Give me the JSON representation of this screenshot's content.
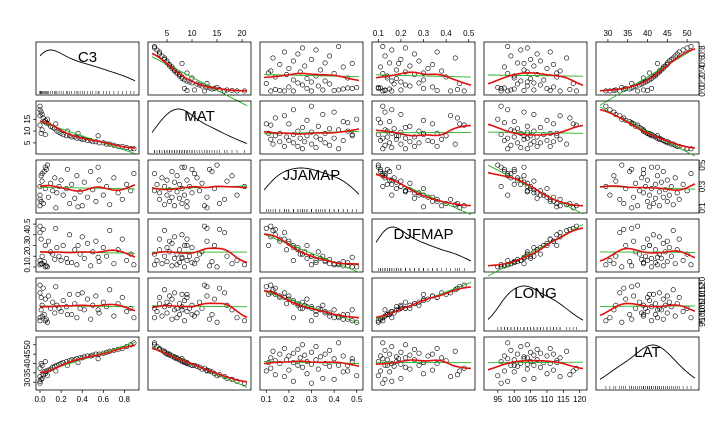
{
  "chart_data": {
    "type": "scatterplot-matrix",
    "variables": [
      {
        "name": "C3",
        "range": [
          0.0,
          0.9
        ],
        "ticks": [
          0.0,
          0.2,
          0.4,
          0.6,
          0.8
        ],
        "topTicks": [
          0.0,
          0.2,
          0.4,
          0.6,
          0.8
        ]
      },
      {
        "name": "MAT",
        "range": [
          2,
          21
        ],
        "ticks": [
          5,
          10,
          15
        ],
        "topTicks": [
          5,
          10,
          15,
          20
        ]
      },
      {
        "name": "JJAMAP",
        "range": [
          0.09,
          0.51
        ],
        "ticks": [
          0.1,
          0.2,
          0.3,
          0.4,
          0.5
        ],
        "topTicks": [
          0.1,
          0.2,
          0.3,
          0.4,
          0.5
        ]
      },
      {
        "name": "DJFMAP",
        "range": [
          0.09,
          0.51
        ],
        "ticks": [
          0.1,
          0.2,
          0.3,
          0.4,
          0.5
        ],
        "topTicks": [
          0.1,
          0.2,
          0.3,
          0.4,
          0.5
        ]
      },
      {
        "name": "LONG",
        "range": [
          92,
          121
        ],
        "ticks": [
          95,
          100,
          105,
          110,
          115,
          120
        ],
        "rightTicks": [
          95,
          100,
          105,
          110,
          115,
          120
        ],
        "bottomTicks": [
          95,
          100,
          105,
          110,
          115,
          120
        ]
      },
      {
        "name": "LAT",
        "range": [
          28,
          52
        ],
        "ticks": [
          30,
          35,
          40,
          45,
          50
        ],
        "topTicks": [
          30,
          35,
          40,
          45,
          50
        ]
      }
    ],
    "rightTicksByRow": [
      [
        0.0,
        0.2,
        0.4,
        0.6,
        0.8
      ],
      [
        5,
        10,
        15
      ],
      [
        0.1,
        0.3,
        0.5
      ],
      [
        0.1,
        0.3,
        0.5
      ],
      [
        95,
        100,
        105,
        110,
        115,
        120
      ],
      [
        30,
        35,
        40,
        45,
        50
      ]
    ],
    "leftTicksByRow": [
      [],
      [
        5,
        10,
        15
      ],
      [],
      [
        0.1,
        0.2,
        0.3,
        0.4,
        0.5
      ],
      [],
      [
        30,
        35,
        40,
        45,
        50
      ]
    ],
    "topTicksByCol": [
      [],
      [
        5,
        10,
        15,
        20
      ],
      [],
      [
        0.1,
        0.2,
        0.3,
        0.4,
        0.5
      ],
      [],
      [
        30,
        35,
        40,
        45,
        50
      ]
    ],
    "bottomTicksByCol": [
      [
        0.0,
        0.2,
        0.4,
        0.6,
        0.8
      ],
      [],
      [
        0.1,
        0.2,
        0.3,
        0.4,
        0.5
      ],
      [],
      [
        95,
        100,
        105,
        110,
        115,
        120
      ],
      []
    ],
    "observations": [
      {
        "C3": 0.0,
        "MAT": 20.5,
        "JJAMAP": 0.3,
        "DJFMAP": 0.12,
        "LONG": 96.0,
        "LAT": 29.5
      },
      {
        "C3": 0.0,
        "MAT": 19.0,
        "JJAMAP": 0.22,
        "DJFMAP": 0.16,
        "LONG": 98.0,
        "LAT": 30.5
      },
      {
        "C3": 0.01,
        "MAT": 18.0,
        "JJAMAP": 0.4,
        "DJFMAP": 0.13,
        "LONG": 103.0,
        "LAT": 31.5
      },
      {
        "C3": 0.02,
        "MAT": 17.0,
        "JJAMAP": 0.35,
        "DJFMAP": 0.2,
        "LONG": 106.0,
        "LAT": 32.0
      },
      {
        "C3": 0.0,
        "MAT": 16.5,
        "JJAMAP": 0.18,
        "DJFMAP": 0.42,
        "LONG": 114.0,
        "LAT": 33.0
      },
      {
        "C3": 0.03,
        "MAT": 15.5,
        "JJAMAP": 0.14,
        "DJFMAP": 0.45,
        "LONG": 117.0,
        "LAT": 34.0
      },
      {
        "C3": 0.05,
        "MAT": 14.5,
        "JJAMAP": 0.28,
        "DJFMAP": 0.3,
        "LONG": 110.0,
        "LAT": 34.5
      },
      {
        "C3": 0.04,
        "MAT": 14.0,
        "JJAMAP": 0.44,
        "DJFMAP": 0.15,
        "LONG": 100.0,
        "LAT": 35.5
      },
      {
        "C3": 0.06,
        "MAT": 13.5,
        "JJAMAP": 0.46,
        "DJFMAP": 0.11,
        "LONG": 97.0,
        "LAT": 36.0
      },
      {
        "C3": 0.08,
        "MAT": 13.0,
        "JJAMAP": 0.2,
        "DJFMAP": 0.34,
        "LONG": 112.0,
        "LAT": 36.5
      },
      {
        "C3": 0.1,
        "MAT": 12.0,
        "JJAMAP": 0.33,
        "DJFMAP": 0.24,
        "LONG": 104.0,
        "LAT": 37.0
      },
      {
        "C3": 0.0,
        "MAT": 12.5,
        "JJAMAP": 0.12,
        "DJFMAP": 0.48,
        "LONG": 119.0,
        "LAT": 37.5
      },
      {
        "C3": 0.12,
        "MAT": 11.5,
        "JJAMAP": 0.26,
        "DJFMAP": 0.22,
        "LONG": 108.0,
        "LAT": 38.0
      },
      {
        "C3": 0.14,
        "MAT": 11.0,
        "JJAMAP": 0.38,
        "DJFMAP": 0.17,
        "LONG": 101.0,
        "LAT": 38.5
      },
      {
        "C3": 0.02,
        "MAT": 10.5,
        "JJAMAP": 0.42,
        "DJFMAP": 0.13,
        "LONG": 99.0,
        "LAT": 39.0
      },
      {
        "C3": 0.16,
        "MAT": 10.0,
        "JJAMAP": 0.24,
        "DJFMAP": 0.28,
        "LONG": 106.0,
        "LAT": 39.0
      },
      {
        "C3": 0.18,
        "MAT": 9.5,
        "JJAMAP": 0.3,
        "DJFMAP": 0.2,
        "LONG": 104.0,
        "LAT": 39.5
      },
      {
        "C3": 0.01,
        "MAT": 9.0,
        "JJAMAP": 0.16,
        "DJFMAP": 0.36,
        "LONG": 111.0,
        "LAT": 40.0
      },
      {
        "C3": 0.2,
        "MAT": 9.0,
        "JJAMAP": 0.36,
        "DJFMAP": 0.16,
        "LONG": 102.0,
        "LAT": 40.0
      },
      {
        "C3": 0.22,
        "MAT": 8.5,
        "JJAMAP": 0.22,
        "DJFMAP": 0.3,
        "LONG": 109.0,
        "LAT": 40.5
      },
      {
        "C3": 0.05,
        "MAT": 8.5,
        "JJAMAP": 0.48,
        "DJFMAP": 0.1,
        "LONG": 96.0,
        "LAT": 41.0
      },
      {
        "C3": 0.25,
        "MAT": 8.0,
        "JJAMAP": 0.28,
        "DJFMAP": 0.18,
        "LONG": 105.0,
        "LAT": 41.0
      },
      {
        "C3": 0.28,
        "MAT": 8.0,
        "JJAMAP": 0.14,
        "DJFMAP": 0.4,
        "LONG": 113.0,
        "LAT": 41.5
      },
      {
        "C3": 0.3,
        "MAT": 7.5,
        "JJAMAP": 0.32,
        "DJFMAP": 0.14,
        "LONG": 100.0,
        "LAT": 42.0
      },
      {
        "C3": 0.33,
        "MAT": 7.5,
        "JJAMAP": 0.19,
        "DJFMAP": 0.26,
        "LONG": 107.0,
        "LAT": 42.0
      },
      {
        "C3": 0.35,
        "MAT": 7.0,
        "JJAMAP": 0.4,
        "DJFMAP": 0.12,
        "LONG": 98.0,
        "LAT": 42.5
      },
      {
        "C3": 0.38,
        "MAT": 7.0,
        "JJAMAP": 0.25,
        "DJFMAP": 0.22,
        "LONG": 104.0,
        "LAT": 43.0
      },
      {
        "C3": 0.4,
        "MAT": 6.5,
        "JJAMAP": 0.12,
        "DJFMAP": 0.38,
        "LONG": 114.0,
        "LAT": 43.0
      },
      {
        "C3": 0.42,
        "MAT": 6.5,
        "JJAMAP": 0.34,
        "DJFMAP": 0.18,
        "LONG": 103.0,
        "LAT": 43.5
      },
      {
        "C3": 0.45,
        "MAT": 6.0,
        "JJAMAP": 0.2,
        "DJFMAP": 0.32,
        "LONG": 110.0,
        "LAT": 44.0
      },
      {
        "C3": 0.48,
        "MAT": 6.0,
        "JJAMAP": 0.44,
        "DJFMAP": 0.11,
        "LONG": 97.0,
        "LAT": 44.0
      },
      {
        "C3": 0.5,
        "MAT": 5.5,
        "JJAMAP": 0.27,
        "DJFMAP": 0.24,
        "LONG": 106.0,
        "LAT": 44.5
      },
      {
        "C3": 0.53,
        "MAT": 5.5,
        "JJAMAP": 0.16,
        "DJFMAP": 0.34,
        "LONG": 112.0,
        "LAT": 45.0
      },
      {
        "C3": 0.56,
        "MAT": 5.0,
        "JJAMAP": 0.36,
        "DJFMAP": 0.15,
        "LONG": 101.0,
        "LAT": 45.0
      },
      {
        "C3": 0.6,
        "MAT": 5.0,
        "JJAMAP": 0.22,
        "DJFMAP": 0.28,
        "LONG": 108.0,
        "LAT": 45.5
      },
      {
        "C3": 0.63,
        "MAT": 4.5,
        "JJAMAP": 0.3,
        "DJFMAP": 0.2,
        "LONG": 105.0,
        "LAT": 46.0
      },
      {
        "C3": 0.66,
        "MAT": 4.5,
        "JJAMAP": 0.13,
        "DJFMAP": 0.44,
        "LONG": 116.0,
        "LAT": 46.5
      },
      {
        "C3": 0.7,
        "MAT": 4.0,
        "JJAMAP": 0.38,
        "DJFMAP": 0.13,
        "LONG": 99.0,
        "LAT": 47.0
      },
      {
        "C3": 0.74,
        "MAT": 3.5,
        "JJAMAP": 0.24,
        "DJFMAP": 0.26,
        "LONG": 107.0,
        "LAT": 47.5
      },
      {
        "C3": 0.78,
        "MAT": 3.5,
        "JJAMAP": 0.18,
        "DJFMAP": 0.36,
        "LONG": 111.0,
        "LAT": 48.0
      },
      {
        "C3": 0.82,
        "MAT": 3.0,
        "JJAMAP": 0.32,
        "DJFMAP": 0.16,
        "LONG": 102.0,
        "LAT": 49.0
      },
      {
        "C3": 0.86,
        "MAT": 2.5,
        "JJAMAP": 0.26,
        "DJFMAP": 0.22,
        "LONG": 104.0,
        "LAT": 50.0
      },
      {
        "C3": 0.89,
        "MAT": 2.5,
        "JJAMAP": 0.42,
        "DJFMAP": 0.12,
        "LONG": 98.0,
        "LAT": 51.0
      },
      {
        "C3": 0.15,
        "MAT": 13.0,
        "JJAMAP": 0.1,
        "DJFMAP": 0.46,
        "LONG": 118.0,
        "LAT": 36.0
      },
      {
        "C3": 0.07,
        "MAT": 15.0,
        "JJAMAP": 0.5,
        "DJFMAP": 0.1,
        "LONG": 95.0,
        "LAT": 33.5
      },
      {
        "C3": 0.26,
        "MAT": 10.0,
        "JJAMAP": 0.46,
        "DJFMAP": 0.14,
        "LONG": 100.0,
        "LAT": 39.0
      },
      {
        "C3": 0.36,
        "MAT": 9.0,
        "JJAMAP": 0.11,
        "DJFMAP": 0.3,
        "LONG": 113.0,
        "LAT": 40.5
      },
      {
        "C3": 0.55,
        "MAT": 8.0,
        "JJAMAP": 0.48,
        "DJFMAP": 0.19,
        "LONG": 103.0,
        "LAT": 42.5
      }
    ],
    "colors": {
      "points": "#000000",
      "smoother": "#e0120f",
      "linear_fit": "#22b022"
    },
    "grid": false
  }
}
